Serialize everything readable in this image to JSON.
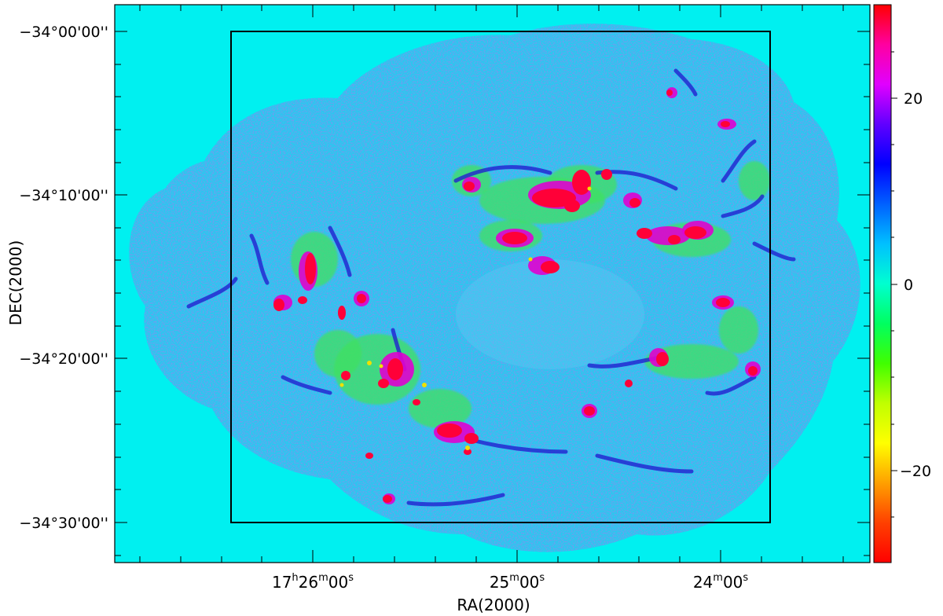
{
  "image": {
    "description_type": "radio/sky map with colorbar",
    "background_color": "#00f0f0",
    "emission_colors": {
      "blue": "#2020d0",
      "green": "#40e060",
      "magenta": "#e000d0",
      "red": "#ff0038",
      "yellow": "#f0e000",
      "noise": "#3a6ad8"
    },
    "frame_color": "#000000"
  },
  "axes": {
    "xlabel": "RA(2000)",
    "ylabel": "DEC(2000)",
    "x_ticks": {
      "t1": {
        "h": "17",
        "hs": "h",
        "m": "26",
        "ms": "m",
        "s": "00",
        "ss": "s"
      },
      "t2": {
        "m": "25",
        "ms": "m",
        "s": "00",
        "ss": "s"
      },
      "t3": {
        "m": "24",
        "ms": "m",
        "s": "00",
        "ss": "s"
      }
    },
    "y_ticks": [
      "−34°00'00''",
      "−34°10'00''",
      "−34°20'00''",
      "−34°30'00''"
    ]
  },
  "colorbar": {
    "tick_labels": [
      "20",
      "0",
      "−20"
    ],
    "colors_top_to_bottom": [
      "#ff0000",
      "#ff00a0",
      "#e000ff",
      "#6000ff",
      "#0000ff",
      "#0060ff",
      "#00c0ff",
      "#00ffd0",
      "#00ff60",
      "#40ff00",
      "#c0ff00",
      "#ffff00",
      "#ffa000",
      "#ff4000",
      "#ff0000"
    ]
  }
}
